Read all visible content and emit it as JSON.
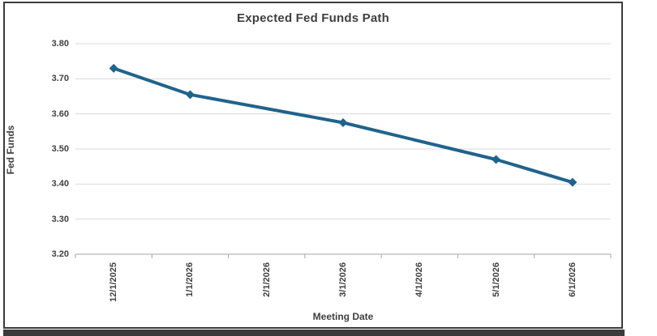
{
  "chart_data": {
    "type": "line",
    "title": "Expected Fed Funds Path",
    "xlabel": "Meeting Date",
    "ylabel": "Fed Funds",
    "categories": [
      "12/1/2025",
      "1/1/2026",
      "2/1/2026",
      "3/1/2026",
      "4/1/2026",
      "5/1/2026",
      "6/1/2026"
    ],
    "series": [
      {
        "name": "Expected Fed Funds Path",
        "points": [
          {
            "x": "12/1/2025",
            "y": 3.73
          },
          {
            "x": "1/1/2026",
            "y": 3.655
          },
          {
            "x": "3/1/2026",
            "y": 3.575
          },
          {
            "x": "5/1/2026",
            "y": 3.47
          },
          {
            "x": "6/1/2026",
            "y": 3.405
          }
        ]
      }
    ],
    "ylim": [
      3.2,
      3.8
    ],
    "ytick_step": 0.1,
    "ytick_labels": [
      "3.80",
      "3.70",
      "3.60",
      "3.50",
      "3.40",
      "3.30",
      "3.20"
    ],
    "grid": true,
    "legend_position": "none",
    "marker": "diamond",
    "colors": {
      "series_line": "#20638C",
      "gridline": "#D9D9D9",
      "axis_line": "#A6A6A6",
      "text": "#404040",
      "frame": "#3B3B3B",
      "background": "#FFFFFF"
    }
  }
}
